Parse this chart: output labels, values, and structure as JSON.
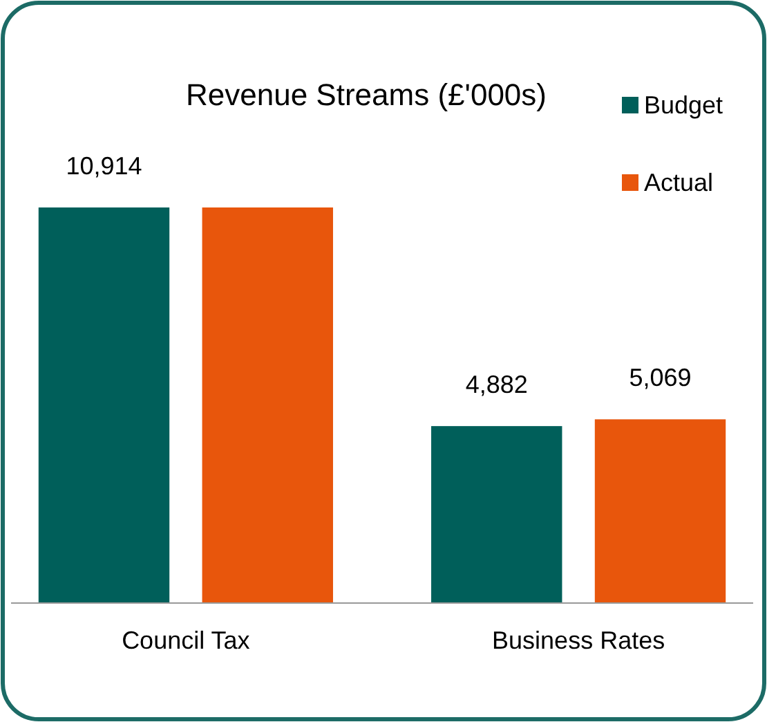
{
  "chart_data": {
    "type": "bar",
    "title": "Revenue Streams (£'000s)",
    "categories": [
      "Council Tax",
      "Business Rates"
    ],
    "series": [
      {
        "name": "Budget",
        "color": "#005f5a",
        "values": [
          10914,
          4882
        ],
        "value_labels": [
          "10,914",
          "4,882"
        ]
      },
      {
        "name": "Actual",
        "color": "#e8560c",
        "values": [
          10914,
          5069
        ],
        "value_labels": [
          null,
          "5,069"
        ]
      }
    ],
    "legend": "top right"
  }
}
